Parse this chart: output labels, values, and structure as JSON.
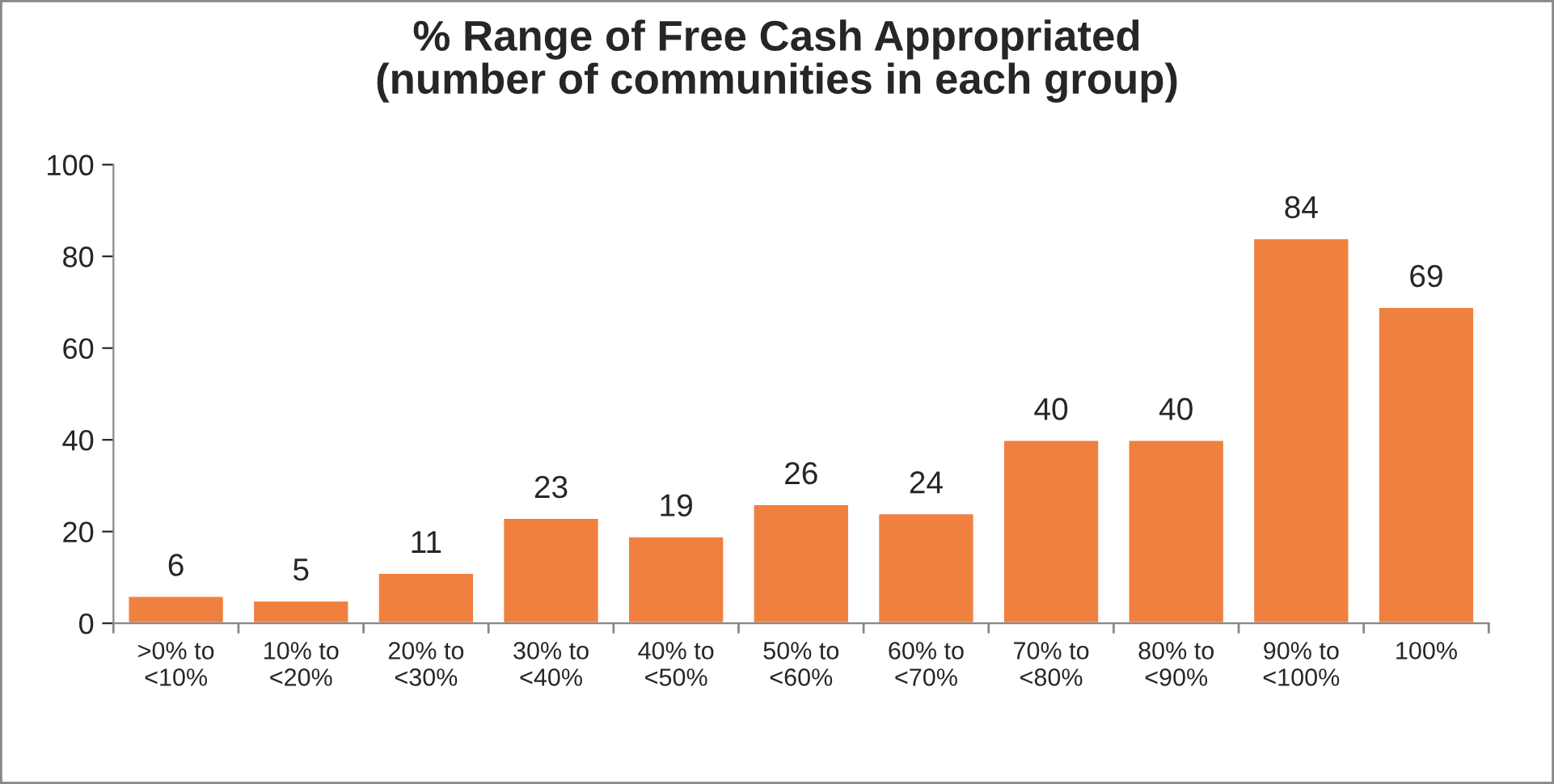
{
  "chart_data": {
    "type": "bar",
    "title": "% Range of Free Cash Appropriated\n(number of communities in each group)",
    "categories": [
      ">0% to\n<10%",
      "10% to\n<20%",
      "20% to\n<30%",
      "30% to\n<40%",
      "40% to\n<50%",
      "50% to\n<60%",
      "60% to\n<70%",
      "70% to\n<80%",
      "80% to\n<90%",
      "90% to\n<100%",
      "100%"
    ],
    "values": [
      6,
      5,
      11,
      23,
      19,
      26,
      24,
      40,
      40,
      84,
      69
    ],
    "color": "#f08040",
    "ylim": [
      0,
      100
    ],
    "yticks": [
      0,
      20,
      40,
      60,
      80,
      100
    ],
    "grid": false,
    "data_labels": true
  }
}
